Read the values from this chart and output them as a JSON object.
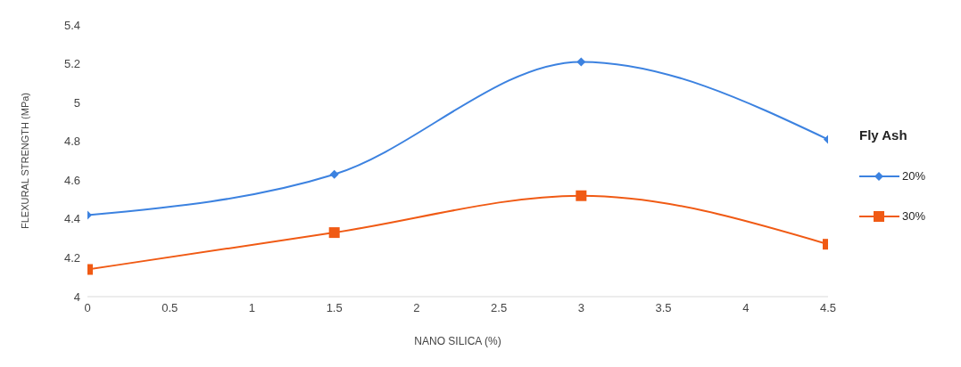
{
  "chart_data": {
    "type": "line",
    "xlabel": "NANO SILICA (%)",
    "ylabel": "FLEXURAL STRENGTH (MPa)",
    "legend_title": "Fly Ash",
    "legend": "right",
    "x": [
      0,
      1.5,
      3,
      4.5
    ],
    "series": [
      {
        "name": "20%",
        "color": "#3c82e0",
        "values": [
          4.42,
          4.63,
          5.21,
          4.81
        ],
        "marker": "diamond"
      },
      {
        "name": "30%",
        "color": "#f05a14",
        "values": [
          4.14,
          4.33,
          4.52,
          4.27
        ],
        "marker": "square"
      }
    ],
    "xlim": [
      0,
      4.5
    ],
    "xticks": [
      0,
      0.5,
      1,
      1.5,
      2,
      2.5,
      3,
      3.5,
      4,
      4.5
    ],
    "ylim": [
      4,
      5.4
    ],
    "yticks": [
      4,
      4.2,
      4.4,
      4.6,
      4.8,
      5,
      5.2,
      5.4
    ],
    "grid": false
  }
}
